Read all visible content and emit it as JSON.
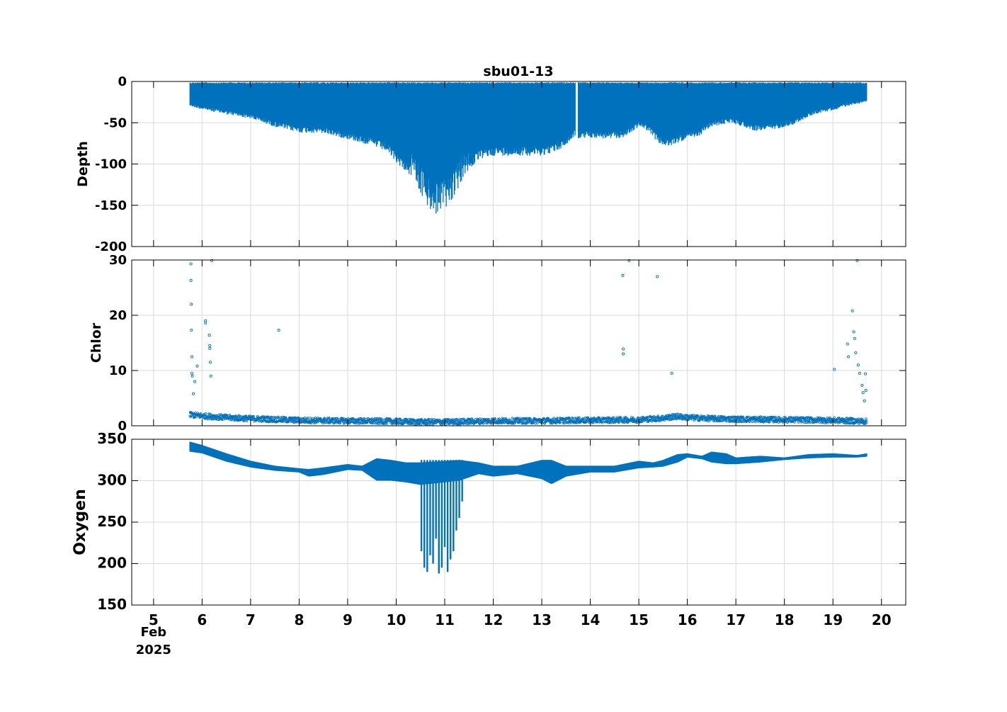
{
  "figure_title": "sbu01-13",
  "colors": {
    "series": "#0072BD",
    "axes": "#000000",
    "grid": "#d9d9d9"
  },
  "x_axis": {
    "ticks": [
      5,
      6,
      7,
      8,
      9,
      10,
      11,
      12,
      13,
      14,
      15,
      16,
      17,
      18,
      19,
      20
    ],
    "xlim": [
      4.55,
      20.5
    ],
    "date_label_month": "Feb",
    "date_label_year": "2025"
  },
  "chart_data": [
    {
      "type": "scatter",
      "name": "depth-panel",
      "title": "sbu01-13",
      "ylabel": "Depth",
      "ylim": [
        -200,
        0
      ],
      "yticks": [
        0,
        -50,
        -100,
        -150,
        -200
      ],
      "grid": true,
      "profile_envelope": {
        "x": [
          5.75,
          6.0,
          6.5,
          7.0,
          7.5,
          8.0,
          8.5,
          9.0,
          9.5,
          9.8,
          10.0,
          10.3,
          10.5,
          10.7,
          10.85,
          11.0,
          11.2,
          11.4,
          11.7,
          12.0,
          12.5,
          13.0,
          13.3,
          13.5,
          13.7,
          13.75,
          14.0,
          14.4,
          14.7,
          15.0,
          15.2,
          15.4,
          15.6,
          15.9,
          16.2,
          16.5,
          16.9,
          17.4,
          17.8,
          18.2,
          18.6,
          19.0,
          19.4,
          19.7
        ],
        "min_depth": [
          -30,
          -34,
          -40,
          -45,
          -55,
          -62,
          -63,
          -70,
          -78,
          -85,
          -98,
          -115,
          -135,
          -160,
          -165,
          -155,
          -140,
          -115,
          -95,
          -90,
          -90,
          -90,
          -85,
          -78,
          -65,
          -70,
          -68,
          -70,
          -68,
          -55,
          -60,
          -75,
          -80,
          -72,
          -68,
          -55,
          -50,
          -60,
          -58,
          -52,
          -40,
          -35,
          -28,
          -25
        ]
      }
    },
    {
      "type": "scatter",
      "name": "chlor-panel",
      "ylabel": "Chlor",
      "ylim": [
        0,
        30
      ],
      "yticks": [
        0,
        10,
        20,
        30
      ],
      "grid": true,
      "baseline": {
        "x": [
          5.75,
          6.0,
          6.5,
          7.0,
          8.0,
          9.0,
          10.0,
          10.5,
          11.0,
          12.0,
          13.0,
          13.7,
          14.0,
          15.0,
          15.5,
          15.8,
          16.0,
          16.5,
          17.0,
          18.0,
          19.0,
          19.7
        ],
        "y": [
          2.0,
          1.8,
          1.5,
          1.3,
          1.0,
          0.9,
          0.8,
          0.7,
          0.7,
          0.9,
          0.9,
          1.0,
          1.0,
          1.1,
          1.4,
          1.7,
          1.5,
          1.3,
          1.2,
          1.1,
          1.0,
          0.8
        ]
      },
      "outliers": {
        "x": [
          5.77,
          5.77,
          5.78,
          5.78,
          5.79,
          5.79,
          5.8,
          5.82,
          5.85,
          5.9,
          6.07,
          6.07,
          6.15,
          6.16,
          6.16,
          6.17,
          6.2,
          6.18,
          7.58,
          14.67,
          14.68,
          14.68,
          14.8,
          15.38,
          15.68,
          19.03,
          19.3,
          19.32,
          19.4,
          19.43,
          19.45,
          19.47,
          19.5,
          19.52,
          19.55,
          19.6,
          19.62,
          19.65,
          19.67,
          19.68
        ],
        "y": [
          29.3,
          26.3,
          22.0,
          17.3,
          12.5,
          9.5,
          9.0,
          5.8,
          8.0,
          10.8,
          19.0,
          18.6,
          16.4,
          14.5,
          14.0,
          11.5,
          29.9,
          9.0,
          17.3,
          27.2,
          13.9,
          13.0,
          29.9,
          27.0,
          9.5,
          10.2,
          14.8,
          12.5,
          20.8,
          17.0,
          15.8,
          13.2,
          29.9,
          11.0,
          9.5,
          7.3,
          6.0,
          4.5,
          9.4,
          6.4
        ]
      }
    },
    {
      "type": "scatter",
      "name": "oxygen-panel",
      "ylabel": "Oxygen",
      "ylim": [
        150,
        350
      ],
      "yticks": [
        150,
        200,
        250,
        300,
        350
      ],
      "grid": true,
      "band": {
        "x": [
          5.75,
          6.0,
          6.5,
          7.0,
          7.5,
          8.0,
          8.2,
          8.5,
          9.0,
          9.3,
          9.6,
          9.9,
          10.2,
          10.5,
          11.3,
          11.7,
          12.0,
          12.5,
          13.0,
          13.2,
          13.5,
          14.0,
          14.5,
          15.0,
          15.3,
          15.5,
          15.8,
          16.0,
          16.3,
          16.5,
          16.8,
          17.0,
          17.5,
          18.0,
          18.5,
          19.0,
          19.5,
          19.7
        ],
        "top": [
          347,
          343,
          333,
          324,
          318,
          315,
          314,
          316,
          320,
          318,
          327,
          325,
          322,
          322,
          325,
          322,
          318,
          318,
          325,
          325,
          318,
          318,
          318,
          324,
          322,
          325,
          332,
          333,
          330,
          335,
          333,
          328,
          330,
          328,
          332,
          333,
          331,
          333
        ],
        "bottom": [
          335,
          333,
          323,
          316,
          312,
          310,
          305,
          307,
          313,
          312,
          300,
          300,
          298,
          295,
          300,
          308,
          305,
          308,
          302,
          296,
          305,
          310,
          310,
          315,
          316,
          317,
          322,
          328,
          326,
          322,
          320,
          320,
          322,
          325,
          327,
          328,
          328,
          329
        ]
      },
      "dips": {
        "x": [
          10.52,
          10.58,
          10.64,
          10.7,
          10.76,
          10.82,
          10.88,
          10.94,
          11.0,
          11.06,
          11.12,
          11.18,
          11.24,
          11.3,
          11.36
        ],
        "y": [
          215,
          195,
          190,
          210,
          200,
          230,
          188,
          195,
          220,
          190,
          205,
          215,
          240,
          255,
          275
        ]
      }
    }
  ]
}
